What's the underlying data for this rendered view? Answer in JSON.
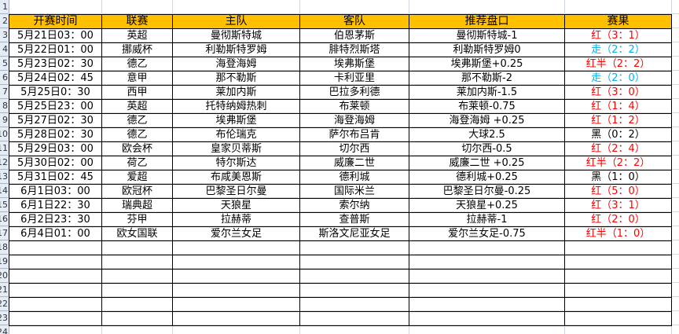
{
  "row_numbers": [
    "1",
    "2",
    "3",
    "4",
    "5",
    "6",
    "7",
    "8",
    "9",
    "10",
    "11",
    "12",
    "13",
    "14",
    "15",
    "16",
    "17",
    "18",
    "19",
    "20",
    "21",
    "22",
    "23",
    "24"
  ],
  "colors": {
    "header_bg": "#FFC000",
    "red": "#FF0000",
    "blue": "#00B0F0",
    "black": "#000000"
  },
  "headers": [
    "开赛时间",
    "联赛",
    "主队",
    "客队",
    "推荐盘口",
    "赛果"
  ],
  "rows": [
    {
      "time": "5月21日03：00",
      "league": "英超",
      "home": "曼彻斯特城",
      "away": "伯恩茅斯",
      "tip": "曼彻斯特城-1",
      "result": "红（3：1）",
      "result_color": "#FF0000"
    },
    {
      "time": "5月22日01：00",
      "league": "挪威杯",
      "home": "利勒斯特罗姆",
      "away": "腓特烈斯塔",
      "tip": "利勒斯特罗姆0",
      "result": "走（2：2）",
      "result_color": "#00B0F0"
    },
    {
      "time": "5月23日02：30",
      "league": "德乙",
      "home": "海登海姆",
      "away": "埃弗斯堡",
      "tip": "埃弗斯堡+0.25",
      "result": "红半（2：2）",
      "result_color": "#FF0000"
    },
    {
      "time": "5月24日02：45",
      "league": "意甲",
      "home": "那不勒斯",
      "away": "卡利亚里",
      "tip": "那不勒斯-2",
      "result": "走（2：0）",
      "result_color": "#00B0F0"
    },
    {
      "time": "5月25日0：30",
      "league": "西甲",
      "home": "莱加内斯",
      "away": "巴拉多利德",
      "tip": "莱加内斯-1.5",
      "result": "红（3：0）",
      "result_color": "#FF0000"
    },
    {
      "time": "5月25日23：00",
      "league": "英超",
      "home": "托特纳姆热刺",
      "away": "布莱顿",
      "tip": "布莱顿-0.75",
      "result": "红（1：4）",
      "result_color": "#FF0000"
    },
    {
      "time": "5月27日02：30",
      "league": "德乙",
      "home": "埃弗斯堡",
      "away": "海登海姆",
      "tip": "海登海姆 +0.25",
      "result": "红（1：2）",
      "result_color": "#FF0000"
    },
    {
      "time": "5月28日02：30",
      "league": "德乙",
      "home": "布伦瑞克",
      "away": "萨尔布吕肯",
      "tip": "大球2.5",
      "result": "黑（0：2）",
      "result_color": "#000000"
    },
    {
      "time": "5月29日03：00",
      "league": "欧会杯",
      "home": "皇家贝蒂斯",
      "away": "切尔西",
      "tip": "切尔西-0.5",
      "result": "红（2：4）",
      "result_color": "#FF0000"
    },
    {
      "time": "5月30日02：00",
      "league": "荷乙",
      "home": "特尔斯达",
      "away": "威廉二世",
      "tip": "威廉二世 +0.25",
      "result": "红半（2：2）",
      "result_color": "#FF0000"
    },
    {
      "time": "5月31日02：45",
      "league": "爱超",
      "home": "布咸美恩斯",
      "away": "德利城",
      "tip": "德利城+0.25",
      "result": "黑（1：0）",
      "result_color": "#000000"
    },
    {
      "time": "6月1日03：00",
      "league": "欧冠杯",
      "home": "巴黎圣日尔曼",
      "away": "国际米兰",
      "tip": "巴黎圣日尔曼-0.25",
      "result": "红（5：0）",
      "result_color": "#FF0000"
    },
    {
      "time": "6月1日22：30",
      "league": "瑞典超",
      "home": "天狼星",
      "away": "索尔纳",
      "tip": "天狼星+0.25",
      "result": "红（3：1）",
      "result_color": "#FF0000"
    },
    {
      "time": "6月2日23：30",
      "league": "芬甲",
      "home": "拉赫蒂",
      "away": "查普斯",
      "tip": "拉赫蒂-1",
      "result": "红（2：0）",
      "result_color": "#FF0000"
    },
    {
      "time": "6月4日01：00",
      "league": "欧女国联",
      "home": "爱尔兰女足",
      "away": "斯洛文尼亚女足",
      "tip": "爱尔兰女足-0.75",
      "result": "红半（1：0）",
      "result_color": "#FF0000"
    }
  ]
}
